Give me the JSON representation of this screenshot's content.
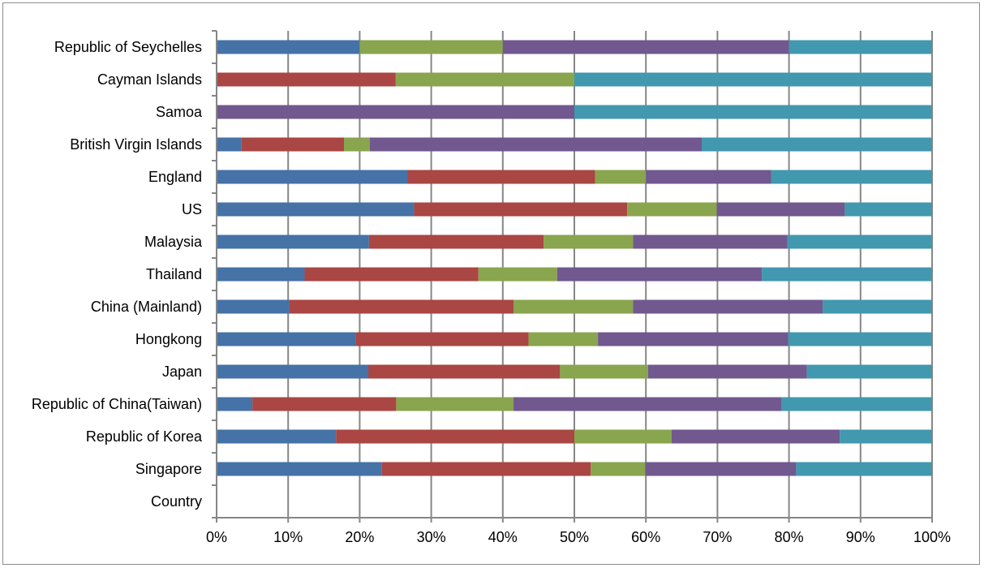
{
  "chart_data": {
    "type": "bar",
    "orientation": "horizontal",
    "stacked": true,
    "percent_stacked": true,
    "categories": [
      "Republic of Seychelles",
      "Cayman Islands",
      "Samoa",
      "British Virgin Islands",
      "England",
      "US",
      "Malaysia",
      "Thailand",
      "China (Mainland)",
      "Hongkong",
      "Japan",
      "Republic of China(Taiwan)",
      "Republic of Korea",
      "Singapore",
      "Country"
    ],
    "series": [
      {
        "color": "#4572a7",
        "values": [
          20,
          0,
          0,
          3.5,
          26.7,
          27.6,
          21.3,
          12.3,
          10.2,
          19.4,
          21.2,
          5.0,
          16.7,
          23.1,
          0
        ]
      },
      {
        "color": "#aa4643",
        "values": [
          0,
          25,
          0,
          14.3,
          26.2,
          29.8,
          24.4,
          24.3,
          31.3,
          24.2,
          26.8,
          20.1,
          33.3,
          29.2,
          0
        ]
      },
      {
        "color": "#89a54e",
        "values": [
          20,
          25,
          0,
          3.6,
          7.1,
          12.5,
          12.5,
          11.0,
          16.7,
          9.7,
          12.3,
          16.4,
          13.6,
          7.6,
          0
        ]
      },
      {
        "color": "#71588f",
        "values": [
          40,
          0,
          50,
          46.4,
          17.5,
          17.9,
          21.6,
          28.6,
          26.5,
          26.6,
          22.2,
          37.5,
          23.5,
          21.1,
          0
        ]
      },
      {
        "color": "#4198af",
        "values": [
          20,
          50,
          50,
          32.2,
          22.5,
          12.2,
          20.2,
          23.8,
          15.3,
          20.1,
          17.5,
          21.0,
          12.9,
          19.0,
          0
        ]
      }
    ],
    "xlim": [
      0,
      100
    ],
    "x_ticks": [
      "0%",
      "10%",
      "20%",
      "30%",
      "40%",
      "50%",
      "60%",
      "70%",
      "80%",
      "90%",
      "100%"
    ],
    "grid": "vertical",
    "legend": "none",
    "title": "",
    "xlabel": "",
    "ylabel": "",
    "axis_color": "#868686",
    "grid_color": "#868686"
  }
}
